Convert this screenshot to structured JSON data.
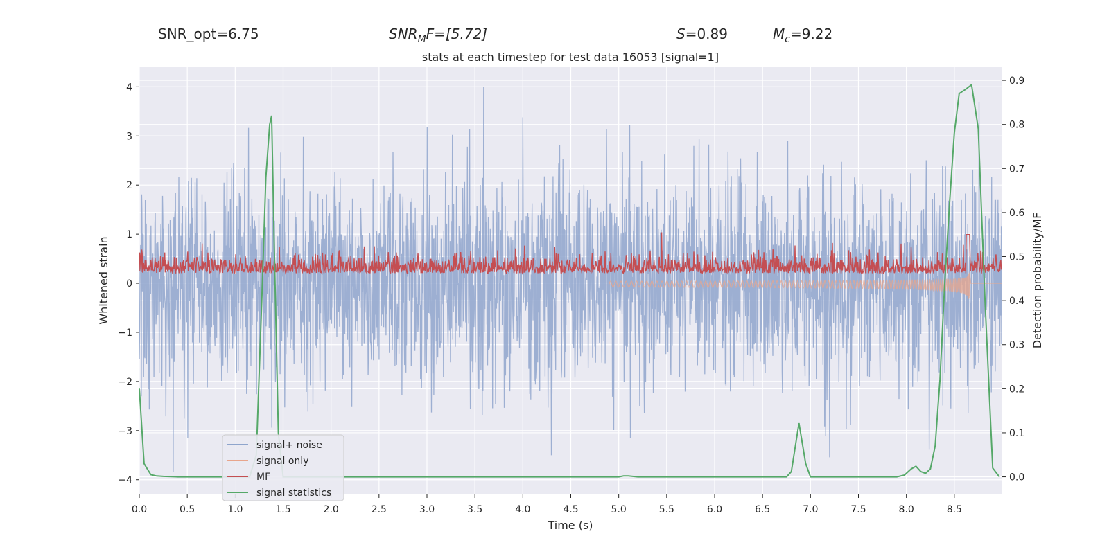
{
  "header": {
    "snr_opt": "SNR_opt=6.75",
    "snr_mf_base": "SNR",
    "snr_mf_sub": "M",
    "snr_mf_rest": "F=[5.72]",
    "s_sym": "S",
    "s_rest": "=0.89",
    "mc_sym": "M",
    "mc_sub": "c",
    "mc_rest": "=9.22"
  },
  "chart_data": {
    "type": "line",
    "title": "stats at each timestep for test data 16053 [signal=1]",
    "xlabel": "Time (s)",
    "ylabel_left": "Whitened strain",
    "ylabel_right": "Detection probability/MF",
    "xlim": [
      0.0,
      9.0
    ],
    "ylim_left": [
      -4.3,
      4.4
    ],
    "ylim_right": [
      -0.04,
      0.93
    ],
    "x_ticks": [
      "0.0",
      "0.5",
      "1.0",
      "1.5",
      "2.0",
      "2.5",
      "3.0",
      "3.5",
      "4.0",
      "4.5",
      "5.0",
      "5.5",
      "6.0",
      "6.5",
      "7.0",
      "7.5",
      "8.0",
      "8.5"
    ],
    "x_tick_values": [
      0,
      0.5,
      1,
      1.5,
      2,
      2.5,
      3,
      3.5,
      4,
      4.5,
      5,
      5.5,
      6,
      6.5,
      7,
      7.5,
      8,
      8.5
    ],
    "y_left_ticks": [
      "−4",
      "−3",
      "−2",
      "−1",
      "0",
      "1",
      "2",
      "3",
      "4"
    ],
    "y_left_tick_values": [
      -4,
      -3,
      -2,
      -1,
      0,
      1,
      2,
      3,
      4
    ],
    "y_right_ticks": [
      "0.0",
      "0.1",
      "0.2",
      "0.3",
      "0.4",
      "0.5",
      "0.6",
      "0.7",
      "0.8",
      "0.9"
    ],
    "y_right_tick_values": [
      0,
      0.1,
      0.2,
      0.3,
      0.4,
      0.5,
      0.6,
      0.7,
      0.8,
      0.9
    ],
    "series": [
      {
        "name": "signal+ noise",
        "axis": "left",
        "color": "#8fa5cc",
        "description": "whitened strain noise, approx. range -3.9 to 4.0, dense band about ±1.4"
      },
      {
        "name": "signal only",
        "axis": "left",
        "color": "#e8a58c",
        "description": "chirp growing from ~5.0 s, peak near 8.65 s (min ≈ -1.0)"
      },
      {
        "name": "MF",
        "axis": "right",
        "color": "#c44e52",
        "description": "matched-filter output ~0.45-0.5 with spikes, peak ≈ 0.55 near 8.65 s"
      },
      {
        "name": "signal statistics",
        "axis": "right",
        "color": "#55a868",
        "x": [
          0.0,
          0.05,
          0.12,
          0.18,
          0.25,
          0.4,
          0.6,
          1.0,
          1.15,
          1.22,
          1.28,
          1.32,
          1.36,
          1.38,
          1.41,
          1.45,
          1.5,
          2.0,
          3.0,
          4.0,
          4.5,
          5.0,
          5.05,
          5.1,
          5.2,
          5.5,
          6.0,
          6.5,
          6.75,
          6.8,
          6.88,
          6.95,
          7.0,
          7.5,
          7.9,
          7.98,
          8.05,
          8.1,
          8.15,
          8.2,
          8.25,
          8.3,
          8.35,
          8.4,
          8.45,
          8.5,
          8.55,
          8.62,
          8.68,
          8.75,
          8.82,
          8.9,
          8.97
        ],
        "y": [
          0.2,
          0.03,
          0.005,
          0.002,
          0.001,
          0.0,
          0.0,
          0.0,
          0.0,
          0.05,
          0.42,
          0.68,
          0.8,
          0.82,
          0.5,
          0.1,
          0.0,
          0.0,
          0.0,
          0.0,
          0.0,
          0.0,
          0.002,
          0.002,
          0.0,
          0.0,
          0.0,
          0.0,
          0.0,
          0.012,
          0.122,
          0.03,
          0.0,
          0.0,
          0.0,
          0.004,
          0.018,
          0.024,
          0.012,
          0.008,
          0.018,
          0.07,
          0.22,
          0.44,
          0.62,
          0.78,
          0.87,
          0.88,
          0.89,
          0.79,
          0.4,
          0.02,
          0.0
        ]
      }
    ],
    "legend": {
      "position": "lower-left",
      "entries": [
        "signal+ noise",
        "signal only",
        "MF",
        "signal statistics"
      ]
    },
    "grid": true
  }
}
